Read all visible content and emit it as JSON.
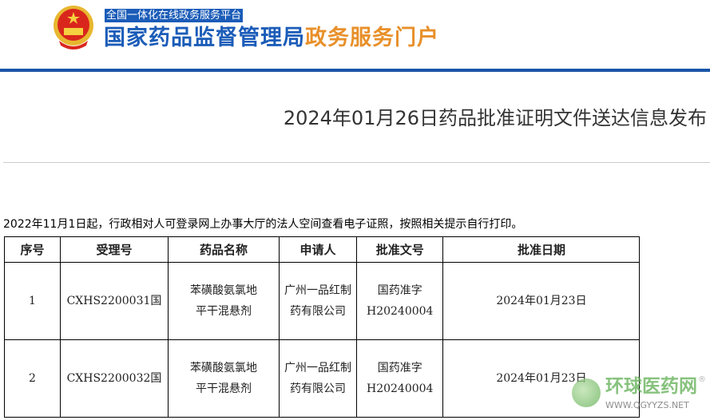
{
  "header": {
    "platform": "全国一体化在线政务服务平台",
    "site_name_blue": "国家药品监督管理局",
    "site_name_orange": "政务服务门户",
    "colors": {
      "blue": "#1b5cb8",
      "orange": "#e8902a"
    }
  },
  "article": {
    "title": "2024年01月26日药品批准证明文件送达信息发布",
    "intro": "2022年11月1日起，行政相对人可登录网上办事大厅的法人空间查看电子证照，按照相关提示自行打印。"
  },
  "table": {
    "headers": [
      "序号",
      "受理号",
      "药品名称",
      "申请人",
      "批准文号",
      "批准日期"
    ],
    "rows": [
      [
        "1",
        "CXHS2200031国",
        "苯磺酸氨氯地平干混悬剂",
        "广州一品红制药有限公司",
        "国药准字H20240004",
        "2024年01月23日"
      ],
      [
        "2",
        "CXHS2200032国",
        "苯磺酸氨氯地平干混悬剂",
        "广州一品红制药有限公司",
        "国药准字H20240004",
        "2024年01月23日"
      ]
    ]
  },
  "watermark": {
    "cn": "环球医药网",
    "en": "WWW.QGYYZS.NET",
    "mark": "®"
  }
}
